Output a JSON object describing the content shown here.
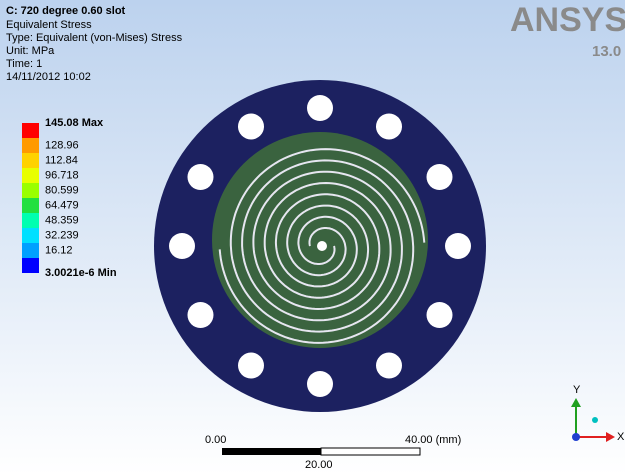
{
  "header": {
    "title": "C: 720 degree 0.60 slot",
    "lines": [
      "Equivalent Stress",
      "Type: Equivalent (von-Mises) Stress",
      "Unit: MPa",
      "Time: 1",
      "14/11/2012 10:02"
    ]
  },
  "legend": {
    "entries": [
      {
        "label": "145.08 Max",
        "color": "#ff0000"
      },
      {
        "label": "128.96",
        "color": "#ff9a00"
      },
      {
        "label": "112.84",
        "color": "#ffd200"
      },
      {
        "label": "96.718",
        "color": "#e8ff00"
      },
      {
        "label": "80.599",
        "color": "#9aff00"
      },
      {
        "label": "64.479",
        "color": "#22e040"
      },
      {
        "label": "48.359",
        "color": "#00ffb0"
      },
      {
        "label": "32.239",
        "color": "#00e0ff"
      },
      {
        "label": "16.12",
        "color": "#00a0ff"
      },
      {
        "label": "3.0021e-6 Min",
        "color": "#0000ff"
      }
    ]
  },
  "logo": {
    "name": "ANSYS",
    "version": "13.0"
  },
  "scale_bar": {
    "start": "0.00",
    "end": "40.00 (mm)",
    "middle": "20.00"
  },
  "triad": {
    "y": "Y",
    "x": "X"
  }
}
